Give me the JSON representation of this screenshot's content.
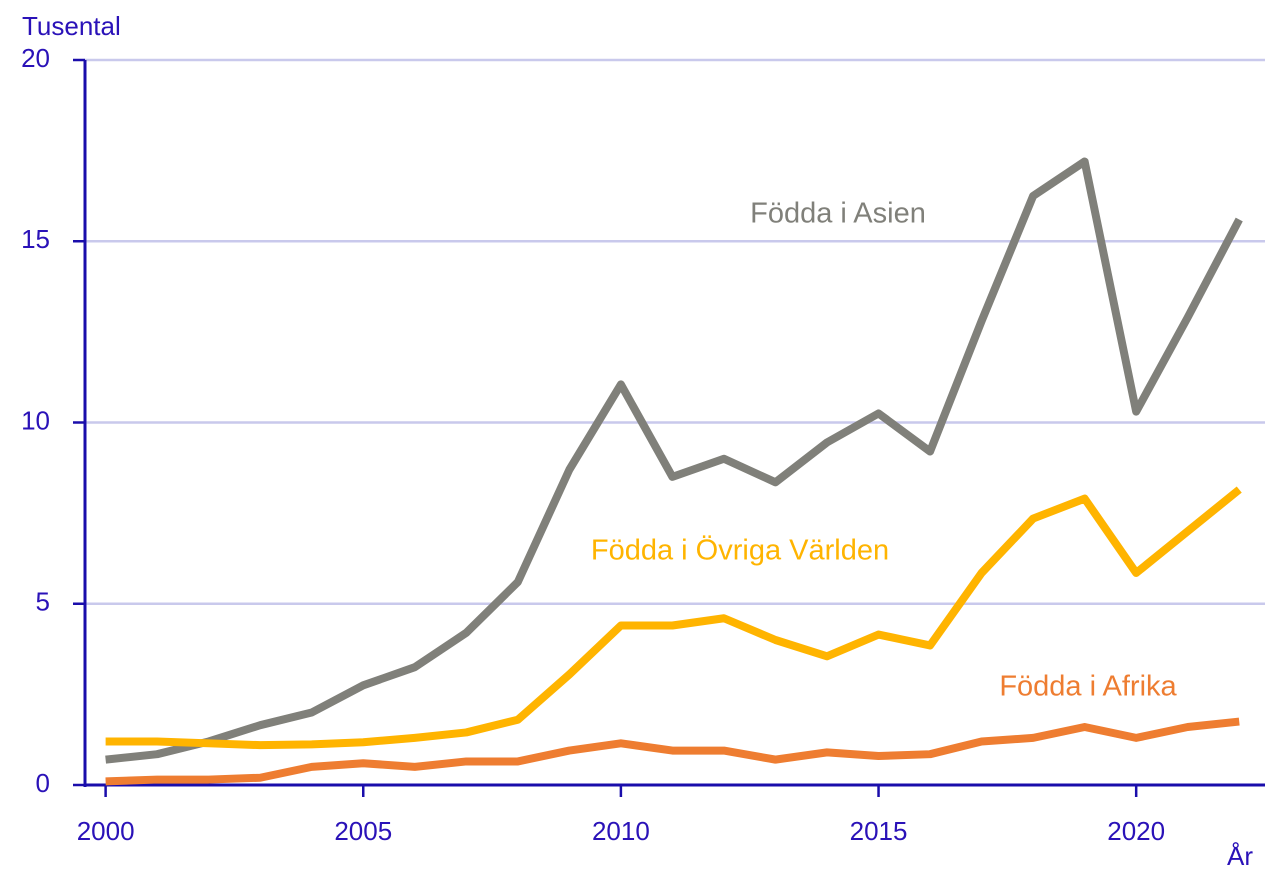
{
  "chart_data": {
    "type": "line",
    "y_label": "Tusental",
    "x_label": "År",
    "x": [
      2000,
      2001,
      2002,
      2003,
      2004,
      2005,
      2006,
      2007,
      2008,
      2009,
      2010,
      2011,
      2012,
      2013,
      2014,
      2015,
      2016,
      2017,
      2018,
      2019,
      2020,
      2021,
      2022
    ],
    "series": [
      {
        "name": "Födda i Asien",
        "color": "#80807a",
        "values": [
          0.7,
          0.85,
          1.2,
          1.65,
          2.0,
          2.75,
          3.25,
          4.2,
          5.6,
          8.7,
          11.05,
          8.5,
          9.0,
          8.35,
          9.45,
          10.25,
          9.2,
          12.8,
          16.25,
          17.2,
          10.3,
          12.9,
          15.6
        ]
      },
      {
        "name": "Födda i Övriga Världen",
        "color": "#ffb400",
        "values": [
          1.2,
          1.2,
          1.15,
          1.1,
          1.12,
          1.18,
          1.3,
          1.45,
          1.8,
          3.05,
          4.4,
          4.4,
          4.6,
          4.0,
          3.55,
          4.15,
          3.85,
          5.85,
          7.35,
          7.9,
          5.85,
          7.0,
          8.15
        ]
      },
      {
        "name": "Födda i Afrika",
        "color": "#ee7d31",
        "values": [
          0.1,
          0.15,
          0.15,
          0.2,
          0.5,
          0.6,
          0.5,
          0.65,
          0.65,
          0.95,
          1.15,
          0.95,
          0.95,
          0.7,
          0.9,
          0.8,
          0.85,
          1.2,
          1.3,
          1.6,
          1.3,
          1.6,
          1.75
        ]
      }
    ],
    "xlim": [
      1999.6,
      2022.5
    ],
    "xticks": [
      2000,
      2005,
      2010,
      2015,
      2020
    ],
    "ylim": [
      0,
      20
    ],
    "yticks": [
      0,
      5,
      10,
      15,
      20
    ],
    "grid": true
  }
}
